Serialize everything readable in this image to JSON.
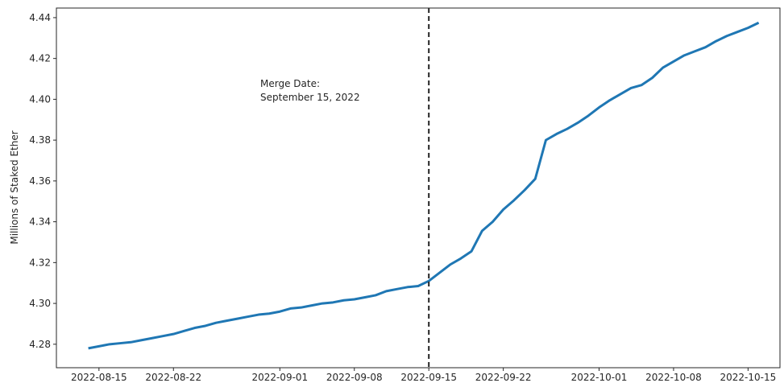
{
  "chart_data": {
    "type": "line",
    "ylabel": "Millions of Staked Ether",
    "annotation": [
      "Merge Date:",
      "September 15, 2022"
    ],
    "vline": "2022-09-15",
    "x": [
      "2022-08-14",
      "2022-08-15",
      "2022-08-16",
      "2022-08-17",
      "2022-08-18",
      "2022-08-19",
      "2022-08-20",
      "2022-08-21",
      "2022-08-22",
      "2022-08-23",
      "2022-08-24",
      "2022-08-25",
      "2022-08-26",
      "2022-08-27",
      "2022-08-28",
      "2022-08-29",
      "2022-08-30",
      "2022-08-31",
      "2022-09-01",
      "2022-09-02",
      "2022-09-03",
      "2022-09-04",
      "2022-09-05",
      "2022-09-06",
      "2022-09-07",
      "2022-09-08",
      "2022-09-09",
      "2022-09-10",
      "2022-09-11",
      "2022-09-12",
      "2022-09-13",
      "2022-09-14",
      "2022-09-15",
      "2022-09-16",
      "2022-09-17",
      "2022-09-18",
      "2022-09-19",
      "2022-09-20",
      "2022-09-21",
      "2022-09-22",
      "2022-09-23",
      "2022-09-24",
      "2022-09-25",
      "2022-09-26",
      "2022-09-27",
      "2022-09-28",
      "2022-09-29",
      "2022-09-30",
      "2022-10-01",
      "2022-10-02",
      "2022-10-03",
      "2022-10-04",
      "2022-10-05",
      "2022-10-06",
      "2022-10-07",
      "2022-10-08",
      "2022-10-09",
      "2022-10-10",
      "2022-10-11",
      "2022-10-12",
      "2022-10-13",
      "2022-10-14",
      "2022-10-15",
      "2022-10-16"
    ],
    "series": [
      {
        "name": "Staked Ether",
        "color": "#1f77b4",
        "values": [
          4.278,
          4.279,
          4.28,
          4.2805,
          4.281,
          4.282,
          4.283,
          4.284,
          4.285,
          4.2865,
          4.288,
          4.289,
          4.2905,
          4.2915,
          4.2925,
          4.2935,
          4.2945,
          4.295,
          4.296,
          4.2975,
          4.298,
          4.299,
          4.3,
          4.3005,
          4.3015,
          4.302,
          4.303,
          4.304,
          4.306,
          4.307,
          4.308,
          4.3085,
          4.311,
          4.315,
          4.319,
          4.322,
          4.3255,
          4.3355,
          4.34,
          4.346,
          4.3505,
          4.3555,
          4.361,
          4.38,
          4.383,
          4.3855,
          4.3885,
          4.392,
          4.396,
          4.3995,
          4.4025,
          4.4055,
          4.407,
          4.4105,
          4.4155,
          4.4185,
          4.4215,
          4.4235,
          4.4255,
          4.4285,
          4.431,
          4.433,
          4.435,
          4.4375
        ]
      }
    ],
    "xlim": [
      "2022-08-11",
      "2022-10-18"
    ],
    "xticks": [
      "2022-08-15",
      "2022-08-22",
      "2022-09-01",
      "2022-09-08",
      "2022-09-15",
      "2022-09-22",
      "2022-10-01",
      "2022-10-08",
      "2022-10-15"
    ],
    "ylim": [
      4.2685,
      4.4447
    ],
    "yticks": [
      4.28,
      {
        "value": 4.3,
        "label": "4.30"
      },
      4.32,
      4.34,
      4.36,
      4.38,
      {
        "value": 4.4,
        "label": "4.40"
      },
      4.42,
      4.44
    ],
    "grid": false
  }
}
